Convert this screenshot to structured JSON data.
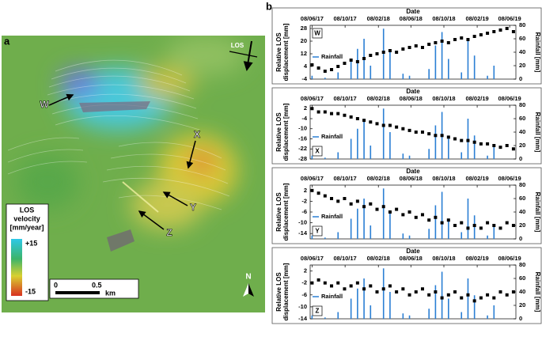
{
  "panel_b_label": "b",
  "map": {
    "panel_label": "a",
    "points": [
      "W",
      "X",
      "Y",
      "Z"
    ],
    "los": "LOS",
    "legend_title": [
      "LOS",
      "velocity",
      "[mm/year]"
    ],
    "legend_max": "+15",
    "legend_min": "-15",
    "scale": [
      "0",
      "0.5"
    ],
    "scale_unit": "km",
    "north": "N"
  },
  "chart_data": [
    {
      "type": "scatter",
      "label": "W",
      "title": "Date",
      "y_label": [
        "Relative LOS",
        "displacement [mm]"
      ],
      "y2_label": "Rainfall [mm]",
      "x": [
        "08/06/17",
        "02/07/17",
        "26/07/17",
        "19/08/17",
        "12/09/17",
        "06/10/17",
        "30/10/17",
        "23/11/17",
        "17/12/17",
        "10/01/18",
        "03/02/18",
        "27/02/18",
        "23/03/18",
        "16/04/18",
        "10/05/18",
        "03/06/18",
        "27/06/18",
        "21/07/18",
        "14/08/18",
        "07/09/18",
        "01/10/18",
        "25/10/18",
        "18/11/18",
        "12/12/18",
        "05/01/19",
        "29/01/19",
        "22/02/19",
        "18/03/19",
        "11/04/19",
        "05/05/19",
        "29/05/19",
        "22/06/19"
      ],
      "xlim": [
        "01/06/17",
        "01/07/19"
      ],
      "xticks": [
        "08/06/17",
        "08/10/17",
        "08/02/18",
        "08/06/18",
        "08/10/18",
        "08/02/19",
        "08/06/19"
      ],
      "ylim": [
        -4,
        30
      ],
      "yticks": [
        -4,
        4,
        12,
        20,
        28
      ],
      "y2lim": [
        0,
        80
      ],
      "y2ticks": [
        0,
        20,
        40,
        60,
        80
      ],
      "legend": "left",
      "series": [
        {
          "color": "#000000",
          "values": [
            5,
            3,
            1,
            2,
            4,
            6,
            8,
            7,
            9,
            11,
            12,
            13,
            14,
            13,
            15,
            16,
            17,
            16,
            18,
            19,
            20,
            19,
            21,
            22,
            21,
            23,
            24,
            25,
            26,
            27,
            28,
            26
          ]
        },
        {
          "name": "Rainfall",
          "color": "#2b7fd4",
          "axis": "y2",
          "values": [
            5,
            0,
            2,
            0,
            10,
            0,
            30,
            45,
            60,
            20,
            0,
            75,
            40,
            0,
            8,
            5,
            0,
            0,
            15,
            50,
            70,
            30,
            0,
            10,
            60,
            35,
            0,
            5,
            20,
            0,
            0,
            0
          ]
        }
      ]
    },
    {
      "type": "scatter",
      "label": "X",
      "title": "Date",
      "y_label": [
        "Relative LOS",
        "displacement [mm]"
      ],
      "y2_label": "Rainfall [mm]",
      "x": [
        "08/06/17",
        "02/07/17",
        "26/07/17",
        "19/08/17",
        "12/09/17",
        "06/10/17",
        "30/10/17",
        "23/11/17",
        "17/12/17",
        "10/01/18",
        "03/02/18",
        "27/02/18",
        "23/03/18",
        "16/04/18",
        "10/05/18",
        "03/06/18",
        "27/06/18",
        "21/07/18",
        "14/08/18",
        "07/09/18",
        "01/10/18",
        "25/10/18",
        "18/11/18",
        "12/12/18",
        "05/01/19",
        "29/01/19",
        "22/02/19",
        "18/03/19",
        "11/04/19",
        "05/05/19",
        "29/05/19",
        "22/06/19"
      ],
      "xlim": [
        "01/06/17",
        "01/07/19"
      ],
      "xticks": [
        "08/06/17",
        "08/10/17",
        "08/02/18",
        "08/06/18",
        "08/10/18",
        "08/02/19",
        "08/06/19"
      ],
      "ylim": [
        -28,
        4
      ],
      "yticks": [
        2,
        -4,
        -10,
        -16,
        -22,
        -28
      ],
      "y2lim": [
        0,
        80
      ],
      "y2ticks": [
        0,
        20,
        40,
        60,
        80
      ],
      "legend": "left",
      "series": [
        {
          "color": "#000000",
          "values": [
            2,
            0,
            0,
            -1,
            -1,
            -2,
            -3,
            -4,
            -5,
            -6,
            -7,
            -8,
            -8,
            -9,
            -10,
            -11,
            -12,
            -12,
            -13,
            -14,
            -14,
            -15,
            -16,
            -17,
            -17,
            -18,
            -19,
            -19,
            -20,
            -21,
            -20,
            -22
          ]
        },
        {
          "name": "Rainfall",
          "color": "#2b7fd4",
          "axis": "y2",
          "values": [
            5,
            0,
            2,
            0,
            10,
            0,
            30,
            45,
            60,
            20,
            0,
            75,
            40,
            0,
            8,
            5,
            0,
            0,
            15,
            50,
            70,
            30,
            0,
            10,
            60,
            35,
            0,
            5,
            20,
            0,
            0,
            0
          ]
        }
      ]
    },
    {
      "type": "scatter",
      "label": "Y",
      "title": "Date",
      "y_label": [
        "Relative LOS",
        "displacement [mm]"
      ],
      "y2_label": "Rainfall [mm]",
      "x": [
        "08/06/17",
        "02/07/17",
        "26/07/17",
        "19/08/17",
        "12/09/17",
        "06/10/17",
        "30/10/17",
        "23/11/17",
        "17/12/17",
        "10/01/18",
        "03/02/18",
        "27/02/18",
        "23/03/18",
        "16/04/18",
        "10/05/18",
        "03/06/18",
        "27/06/18",
        "21/07/18",
        "14/08/18",
        "07/09/18",
        "01/10/18",
        "25/10/18",
        "18/11/18",
        "12/12/18",
        "05/01/19",
        "29/01/19",
        "22/02/19",
        "18/03/19",
        "11/04/19",
        "05/05/19",
        "29/05/19",
        "22/06/19"
      ],
      "xlim": [
        "01/06/17",
        "01/07/19"
      ],
      "xticks": [
        "08/06/17",
        "08/10/17",
        "08/02/18",
        "08/06/18",
        "08/10/18",
        "08/02/19",
        "08/06/19"
      ],
      "ylim": [
        -16,
        4
      ],
      "yticks": [
        2,
        -2,
        -6,
        -10,
        -14
      ],
      "y2lim": [
        0,
        80
      ],
      "y2ticks": [
        0,
        20,
        40,
        60,
        80
      ],
      "legend": "left",
      "series": [
        {
          "color": "#000000",
          "values": [
            2,
            1,
            0,
            -1,
            -2,
            -1,
            -3,
            -2,
            -4,
            -3,
            -5,
            -4,
            -6,
            -5,
            -7,
            -6,
            -8,
            -7,
            -9,
            -8,
            -10,
            -9,
            -11,
            -10,
            -12,
            -11,
            -12,
            -10,
            -11,
            -12,
            -10,
            -11
          ]
        },
        {
          "name": "Rainfall",
          "color": "#2b7fd4",
          "axis": "y2",
          "values": [
            5,
            0,
            2,
            0,
            10,
            0,
            30,
            45,
            60,
            20,
            0,
            75,
            40,
            0,
            8,
            5,
            0,
            0,
            15,
            50,
            70,
            30,
            0,
            10,
            60,
            35,
            0,
            5,
            20,
            0,
            0,
            0
          ]
        }
      ]
    },
    {
      "type": "scatter",
      "label": "Z",
      "title": "Date",
      "y_label": [
        "Relative LOS",
        "displacement [mm]"
      ],
      "y2_label": "Rainfall [mm]",
      "x": [
        "08/06/17",
        "02/07/17",
        "26/07/17",
        "19/08/17",
        "12/09/17",
        "06/10/17",
        "30/10/17",
        "23/11/17",
        "17/12/17",
        "10/01/18",
        "03/02/18",
        "27/02/18",
        "23/03/18",
        "16/04/18",
        "10/05/18",
        "03/06/18",
        "27/06/18",
        "21/07/18",
        "14/08/18",
        "07/09/18",
        "01/10/18",
        "25/10/18",
        "18/11/18",
        "12/12/18",
        "05/01/19",
        "29/01/19",
        "22/02/19",
        "18/03/19",
        "11/04/19",
        "05/05/19",
        "29/05/19",
        "22/06/19"
      ],
      "xlim": [
        "01/06/17",
        "01/07/19"
      ],
      "xticks": [
        "08/06/17",
        "08/10/17",
        "08/02/18",
        "08/06/18",
        "08/10/18",
        "08/02/19",
        "08/06/19"
      ],
      "ylim": [
        -14,
        4
      ],
      "yticks": [
        2,
        -2,
        -6,
        -10,
        -14
      ],
      "y2lim": [
        0,
        80
      ],
      "y2ticks": [
        0,
        20,
        40,
        60,
        80
      ],
      "legend": "left",
      "series": [
        {
          "color": "#000000",
          "values": [
            -2,
            -1,
            -2,
            -3,
            -2,
            -4,
            -3,
            -2,
            -4,
            -3,
            -5,
            -4,
            -3,
            -5,
            -4,
            -6,
            -5,
            -4,
            -6,
            -5,
            -7,
            -6,
            -5,
            -7,
            -6,
            -8,
            -7,
            -6,
            -7,
            -5,
            -6,
            -5
          ]
        },
        {
          "name": "Rainfall",
          "color": "#2b7fd4",
          "axis": "y2",
          "values": [
            5,
            0,
            2,
            0,
            10,
            0,
            30,
            45,
            60,
            20,
            0,
            75,
            40,
            0,
            8,
            5,
            0,
            0,
            15,
            50,
            70,
            30,
            0,
            10,
            60,
            35,
            0,
            5,
            20,
            0,
            0,
            0
          ]
        }
      ]
    }
  ]
}
